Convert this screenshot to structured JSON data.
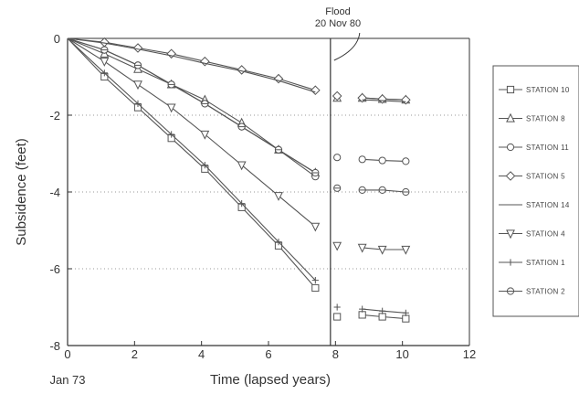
{
  "chart_data": {
    "type": "line",
    "title": "",
    "xlabel": "Time (lapsed years)",
    "ylabel": "Subsidence (feet)",
    "xlim": [
      0,
      12
    ],
    "ylim": [
      -8,
      0
    ],
    "x_ticks": [
      0,
      2,
      4,
      6,
      8,
      10,
      12
    ],
    "y_ticks": [
      0,
      -2,
      -4,
      -6,
      -8
    ],
    "x_tick_labels": [
      "0",
      "2",
      "4",
      "6",
      "8",
      "10",
      "12"
    ],
    "y_tick_labels": [
      "0",
      "-2",
      "-4",
      "-6",
      "-8"
    ],
    "x_origin_label": "Jan 73",
    "grid": "horizontal dotted",
    "legend_position": "right",
    "annotation": {
      "text_line1": "Flood",
      "text_line2": "20 Nov 80",
      "x": 7.85
    },
    "series": [
      {
        "name": "STATION 10",
        "marker": "square",
        "x": [
          0,
          1.1,
          2.1,
          3.1,
          4.1,
          5.2,
          6.3,
          7.4
        ],
        "y": [
          0,
          -1,
          -1.8,
          -2.6,
          -3.4,
          -4.4,
          -5.4,
          -6.5
        ],
        "post_x": [
          8.05,
          8.8,
          9.4,
          10.1
        ],
        "post_y": [
          -7.25,
          -7.2,
          -7.25,
          -7.3
        ]
      },
      {
        "name": "STATION 8",
        "marker": "triangle",
        "x": [
          0,
          1.1,
          2.1,
          3.1,
          4.1,
          5.2,
          6.3,
          7.4
        ],
        "y": [
          0,
          -0.4,
          -0.8,
          -1.2,
          -1.6,
          -2.2,
          -2.9,
          -3.5
        ],
        "post_x": [
          8.05,
          8.8,
          9.4,
          10.1
        ],
        "post_y": [
          -1.55,
          -1.55,
          -1.58,
          -1.6
        ]
      },
      {
        "name": "STATION 11",
        "marker": "circle",
        "x": [
          0,
          1.1,
          2.1,
          3.1,
          4.1,
          5.2,
          6.3,
          7.4
        ],
        "y": [
          0,
          -0.3,
          -0.7,
          -1.2,
          -1.7,
          -2.3,
          -2.9,
          -3.6
        ],
        "post_x": [
          8.05,
          8.8,
          9.4,
          10.1
        ],
        "post_y": [
          -3.1,
          -3.15,
          -3.18,
          -3.2
        ]
      },
      {
        "name": "STATION 5",
        "marker": "diamond",
        "x": [
          0,
          1.1,
          2.1,
          3.1,
          4.1,
          5.2,
          6.3,
          7.4
        ],
        "y": [
          0,
          -0.1,
          -0.25,
          -0.4,
          -0.6,
          -0.82,
          -1.05,
          -1.35
        ],
        "post_x": [
          8.05,
          8.8,
          9.4,
          10.1
        ],
        "post_y": [
          -1.5,
          -1.55,
          -1.58,
          -1.6
        ]
      },
      {
        "name": "STATION 14",
        "marker": "none",
        "x": [
          0,
          1.1,
          2.1,
          3.1,
          4.1,
          5.2,
          6.3,
          7.4
        ],
        "y": [
          0,
          -0.12,
          -0.28,
          -0.45,
          -0.65,
          -0.85,
          -1.1,
          -1.4
        ],
        "post_x": [
          8.05,
          8.8,
          9.4,
          10.1
        ],
        "post_y": [
          -1.55,
          -1.6,
          -1.62,
          -1.65
        ]
      },
      {
        "name": "STATION 4",
        "marker": "triangle-down",
        "x": [
          0,
          1.1,
          2.1,
          3.1,
          4.1,
          5.2,
          6.3,
          7.4
        ],
        "y": [
          0,
          -0.6,
          -1.2,
          -1.8,
          -2.5,
          -3.3,
          -4.1,
          -4.9
        ],
        "post_x": [
          8.05,
          8.8,
          9.4,
          10.1
        ],
        "post_y": [
          -5.4,
          -5.45,
          -5.5,
          -5.5
        ]
      },
      {
        "name": "STATION 1",
        "marker": "plus",
        "x": [
          0,
          1.1,
          2.1,
          3.1,
          4.1,
          5.2,
          6.3,
          7.4
        ],
        "y": [
          0,
          -0.9,
          -1.7,
          -2.5,
          -3.3,
          -4.3,
          -5.3,
          -6.3
        ],
        "post_x": [
          8.05,
          8.8,
          9.4,
          10.1
        ],
        "post_y": [
          -7.0,
          -7.05,
          -7.1,
          -7.15
        ]
      },
      {
        "name": "STATION 2",
        "marker": "circle-cross",
        "x": [
          0,
          1.1,
          2.1,
          3.1,
          4.1,
          5.2,
          6.3,
          7.4
        ],
        "y": [
          0,
          -0.3,
          -0.7,
          -1.2,
          -1.7,
          -2.3,
          -2.9,
          -3.5
        ],
        "post_x": [
          8.05,
          8.8,
          9.4,
          10.1
        ],
        "post_y": [
          -3.9,
          -3.95,
          -3.95,
          -4.0
        ]
      }
    ],
    "colors": {
      "line": "#555555",
      "axis": "#333333",
      "grid": "#9a9a9a"
    }
  }
}
